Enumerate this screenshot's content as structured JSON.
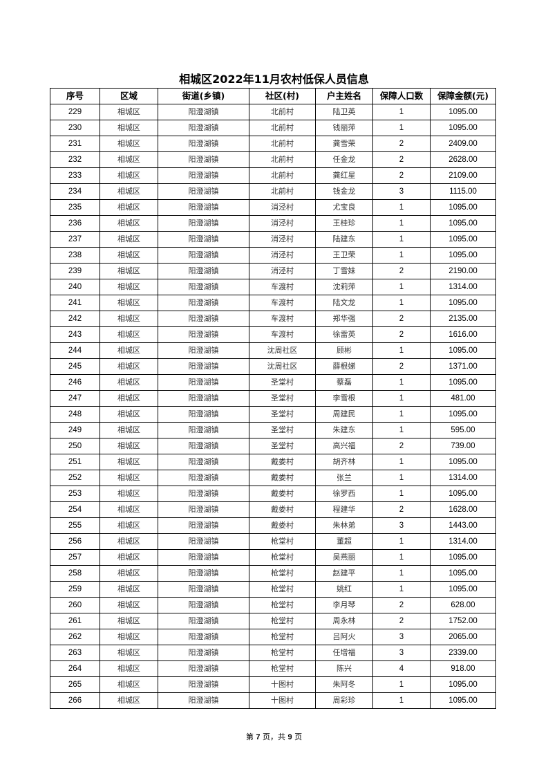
{
  "title": "相城区2022年11月农村低保人员信息",
  "columns": [
    "序号",
    "区域",
    "街道(乡镇)",
    "社区(村)",
    "户主姓名",
    "保障人口数",
    "保障金额(元)"
  ],
  "rows": [
    [
      "229",
      "相城区",
      "阳澄湖镇",
      "北前村",
      "陆卫英",
      "1",
      "1095.00"
    ],
    [
      "230",
      "相城区",
      "阳澄湖镇",
      "北前村",
      "钱丽萍",
      "1",
      "1095.00"
    ],
    [
      "231",
      "相城区",
      "阳澄湖镇",
      "北前村",
      "龚雪荣",
      "2",
      "2409.00"
    ],
    [
      "232",
      "相城区",
      "阳澄湖镇",
      "北前村",
      "任金龙",
      "2",
      "2628.00"
    ],
    [
      "233",
      "相城区",
      "阳澄湖镇",
      "北前村",
      "龚红星",
      "2",
      "2109.00"
    ],
    [
      "234",
      "相城区",
      "阳澄湖镇",
      "北前村",
      "钱金龙",
      "3",
      "1115.00"
    ],
    [
      "235",
      "相城区",
      "阳澄湖镇",
      "消泾村",
      "尤宝良",
      "1",
      "1095.00"
    ],
    [
      "236",
      "相城区",
      "阳澄湖镇",
      "消泾村",
      "王桂珍",
      "1",
      "1095.00"
    ],
    [
      "237",
      "相城区",
      "阳澄湖镇",
      "消泾村",
      "陆建东",
      "1",
      "1095.00"
    ],
    [
      "238",
      "相城区",
      "阳澄湖镇",
      "消泾村",
      "王卫荣",
      "1",
      "1095.00"
    ],
    [
      "239",
      "相城区",
      "阳澄湖镇",
      "消泾村",
      "丁雪妹",
      "2",
      "2190.00"
    ],
    [
      "240",
      "相城区",
      "阳澄湖镇",
      "车渡村",
      "沈莉萍",
      "1",
      "1314.00"
    ],
    [
      "241",
      "相城区",
      "阳澄湖镇",
      "车渡村",
      "陆文龙",
      "1",
      "1095.00"
    ],
    [
      "242",
      "相城区",
      "阳澄湖镇",
      "车渡村",
      "郑华强",
      "2",
      "2135.00"
    ],
    [
      "243",
      "相城区",
      "阳澄湖镇",
      "车渡村",
      "徐雷英",
      "2",
      "1616.00"
    ],
    [
      "244",
      "相城区",
      "阳澄湖镇",
      "沈周社区",
      "顾彬",
      "1",
      "1095.00"
    ],
    [
      "245",
      "相城区",
      "阳澄湖镇",
      "沈周社区",
      "薛根娣",
      "2",
      "1371.00"
    ],
    [
      "246",
      "相城区",
      "阳澄湖镇",
      "圣堂村",
      "蔡磊",
      "1",
      "1095.00"
    ],
    [
      "247",
      "相城区",
      "阳澄湖镇",
      "圣堂村",
      "李雪根",
      "1",
      "481.00"
    ],
    [
      "248",
      "相城区",
      "阳澄湖镇",
      "圣堂村",
      "周建民",
      "1",
      "1095.00"
    ],
    [
      "249",
      "相城区",
      "阳澄湖镇",
      "圣堂村",
      "朱建东",
      "1",
      "595.00"
    ],
    [
      "250",
      "相城区",
      "阳澄湖镇",
      "圣堂村",
      "高兴福",
      "2",
      "739.00"
    ],
    [
      "251",
      "相城区",
      "阳澄湖镇",
      "戴娄村",
      "胡齐林",
      "1",
      "1095.00"
    ],
    [
      "252",
      "相城区",
      "阳澄湖镇",
      "戴娄村",
      "张兰",
      "1",
      "1314.00"
    ],
    [
      "253",
      "相城区",
      "阳澄湖镇",
      "戴娄村",
      "徐罗西",
      "1",
      "1095.00"
    ],
    [
      "254",
      "相城区",
      "阳澄湖镇",
      "戴娄村",
      "程建华",
      "2",
      "1628.00"
    ],
    [
      "255",
      "相城区",
      "阳澄湖镇",
      "戴娄村",
      "朱林弟",
      "3",
      "1443.00"
    ],
    [
      "256",
      "相城区",
      "阳澄湖镇",
      "枪堂村",
      "董超",
      "1",
      "1314.00"
    ],
    [
      "257",
      "相城区",
      "阳澄湖镇",
      "枪堂村",
      "吴燕丽",
      "1",
      "1095.00"
    ],
    [
      "258",
      "相城区",
      "阳澄湖镇",
      "枪堂村",
      "赵建平",
      "1",
      "1095.00"
    ],
    [
      "259",
      "相城区",
      "阳澄湖镇",
      "枪堂村",
      "姚红",
      "1",
      "1095.00"
    ],
    [
      "260",
      "相城区",
      "阳澄湖镇",
      "枪堂村",
      "李月琴",
      "2",
      "628.00"
    ],
    [
      "261",
      "相城区",
      "阳澄湖镇",
      "枪堂村",
      "周永林",
      "2",
      "1752.00"
    ],
    [
      "262",
      "相城区",
      "阳澄湖镇",
      "枪堂村",
      "吕阿火",
      "3",
      "2065.00"
    ],
    [
      "263",
      "相城区",
      "阳澄湖镇",
      "枪堂村",
      "任增福",
      "3",
      "2339.00"
    ],
    [
      "264",
      "相城区",
      "阳澄湖镇",
      "枪堂村",
      "陈兴",
      "4",
      "918.00"
    ],
    [
      "265",
      "相城区",
      "阳澄湖镇",
      "十图村",
      "朱阿冬",
      "1",
      "1095.00"
    ],
    [
      "266",
      "相城区",
      "阳澄湖镇",
      "十图村",
      "周彩珍",
      "1",
      "1095.00"
    ]
  ],
  "footer": {
    "prefix": "第",
    "page": "7",
    "middle": "页，共",
    "total": "9",
    "suffix": "页"
  }
}
